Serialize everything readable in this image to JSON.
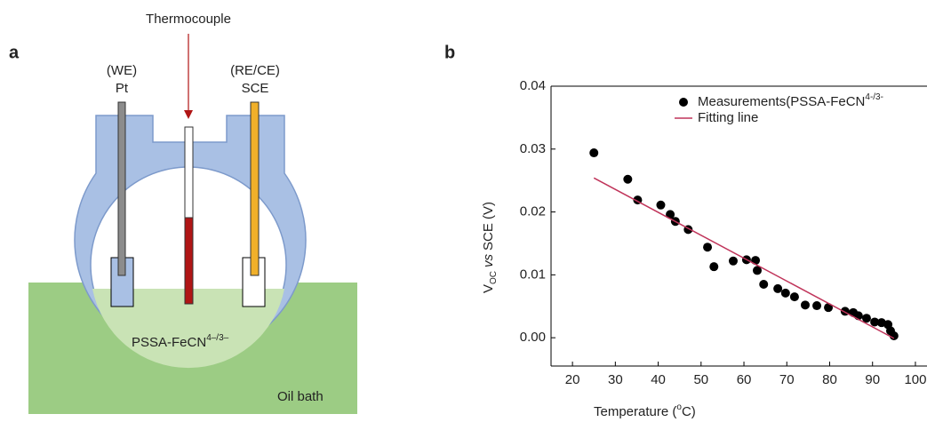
{
  "panel_labels": [
    "a",
    "b"
  ],
  "diagram": {
    "thermocouple": "Thermocouple",
    "we": "(WE)",
    "pt": "Pt",
    "rece": "(RE/CE)",
    "sce": "SCE",
    "electrolyte": "PSSA-FeCN",
    "electrolyte_superscript": "4–/3–",
    "oil_bath": "Oil bath"
  },
  "chart_data": {
    "type": "scatter",
    "ylabel_parts": [
      "V",
      "OC",
      "vs",
      "SCE (V)"
    ],
    "xlabel_parts": [
      "Temperature (",
      "o",
      "C)"
    ],
    "xlim": [
      15,
      102
    ],
    "ylim": [
      -0.0045,
      0.04
    ],
    "xticks": [
      20,
      30,
      40,
      50,
      60,
      70,
      80,
      90,
      100
    ],
    "yticks": [
      {
        "value": 0,
        "label": "0.00"
      },
      {
        "value": 0.01,
        "label": "0.01"
      },
      {
        "value": 0.02,
        "label": "0.02"
      },
      {
        "value": 0.03,
        "label": "0.03"
      },
      {
        "value": 0.04,
        "label": "0.04"
      }
    ],
    "series": [
      {
        "name": "Measurements(PSSA-FeCN",
        "name_superscript": "4-/3-",
        "mode": "markers",
        "color": "#000000",
        "x": [
          25,
          32.9,
          35.2,
          40.6,
          42.8,
          44.0,
          47.0,
          51.5,
          53.0,
          57.5,
          60.6,
          62.7,
          63.1,
          64.6,
          67.9,
          69.7,
          71.8,
          74.3,
          77.0,
          79.7,
          83.6,
          85.5,
          86.7,
          88.6,
          90.5,
          92.1,
          93.6,
          94.2,
          95.0
        ],
        "values": [
          0.0294,
          0.0252,
          0.0219,
          0.0211,
          0.0196,
          0.0185,
          0.0172,
          0.0144,
          0.0113,
          0.0122,
          0.0124,
          0.0123,
          0.0107,
          0.0085,
          0.0078,
          0.0071,
          0.0065,
          0.0052,
          0.0051,
          0.0048,
          0.0042,
          0.004,
          0.0035,
          0.0031,
          0.0025,
          0.0024,
          0.0021,
          0.0011,
          0.0003
        ]
      },
      {
        "name": "Fitting line",
        "mode": "line",
        "color": "#c0345a",
        "x": [
          25,
          95
        ],
        "values": [
          0.0254,
          -0.0001
        ]
      }
    ]
  }
}
